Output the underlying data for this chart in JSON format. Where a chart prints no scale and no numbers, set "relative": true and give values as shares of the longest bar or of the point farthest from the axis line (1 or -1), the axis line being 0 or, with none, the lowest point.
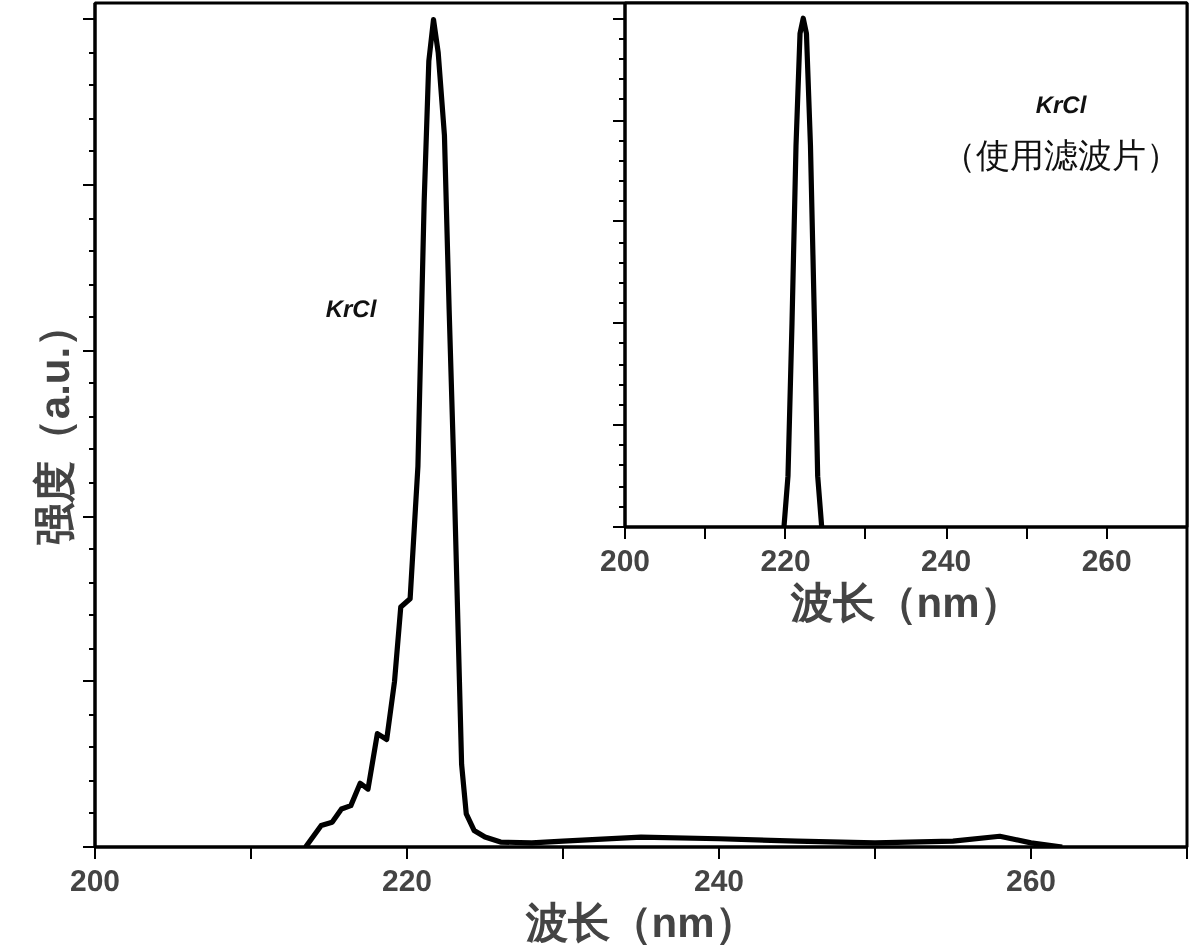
{
  "chart_data": [
    {
      "type": "line",
      "relative": true,
      "xlim": [
        200,
        270
      ],
      "xticks": [
        200,
        {
          "value": 210,
          "label": null
        },
        220,
        {
          "value": 230,
          "label": null
        },
        240,
        {
          "value": 250,
          "label": null
        },
        260,
        {
          "value": 270,
          "label": null
        }
      ],
      "xlabel": "波长（nm）",
      "ylabel": "强度（a.u.）",
      "annotations": [
        "KrCl"
      ],
      "grid": false,
      "series": [
        {
          "color": "#000000",
          "x": [
            213.5,
            214.5,
            215.2,
            215.8,
            216.4,
            217.0,
            217.5,
            218.1,
            218.7,
            219.2,
            219.6,
            220.2,
            220.7,
            221.1,
            221.4,
            221.7,
            222.0,
            222.4,
            222.7,
            223.0,
            223.5,
            223.8,
            224.3,
            225,
            226,
            228,
            230,
            235,
            240,
            245,
            250,
            255,
            258,
            260,
            262
          ],
          "values": [
            0,
            0.026,
            0.03,
            0.046,
            0.05,
            0.077,
            0.07,
            0.137,
            0.13,
            0.2,
            0.29,
            0.3,
            0.46,
            0.78,
            0.95,
            1,
            0.96,
            0.86,
            0.65,
            0.46,
            0.1,
            0.04,
            0.02,
            0.012,
            0.006,
            0.005,
            0.007,
            0.012,
            0.01,
            0.007,
            0.005,
            0.007,
            0.013,
            0.005,
            0
          ]
        }
      ]
    },
    {
      "type": "line",
      "relative": true,
      "xlim": [
        200,
        270
      ],
      "xticks": [
        200,
        {
          "value": 210,
          "label": null
        },
        220,
        {
          "value": 230,
          "label": null
        },
        240,
        {
          "value": 250,
          "label": null
        },
        260,
        {
          "value": 270,
          "label": null
        }
      ],
      "xlabel": "波长（nm）",
      "annotations": [
        "KrCl",
        "（使用滤波片）"
      ],
      "grid": false,
      "series": [
        {
          "color": "#000000",
          "x": [
            219.8,
            220.3,
            220.8,
            221.3,
            221.8,
            222.2,
            222.6,
            223.1,
            223.6,
            224.0,
            224.5
          ],
          "values": [
            0,
            0.1,
            0.4,
            0.75,
            0.97,
            1,
            0.97,
            0.75,
            0.4,
            0.1,
            0
          ]
        }
      ]
    }
  ]
}
